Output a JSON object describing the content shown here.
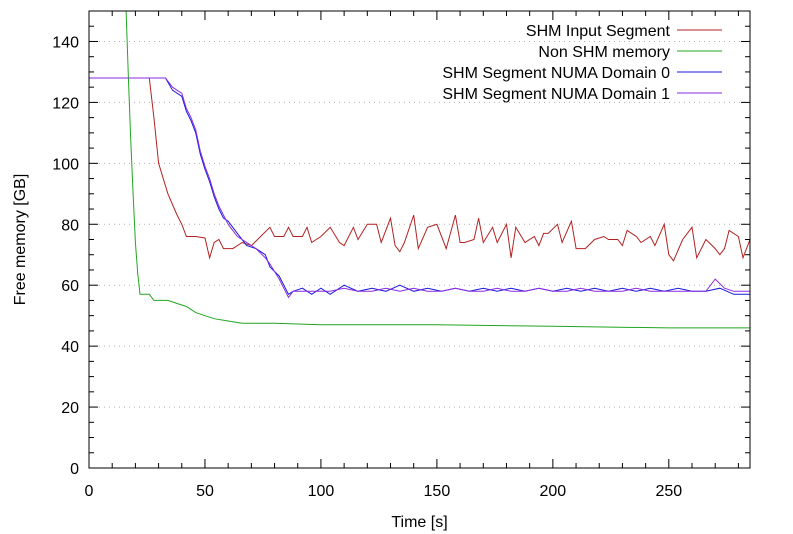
{
  "chart_data": {
    "type": "line",
    "title": "",
    "xlabel": "Time [s]",
    "ylabel": "Free memory [GB]",
    "xlim": [
      0,
      285
    ],
    "ylim": [
      0,
      150
    ],
    "x_ticks": [
      0,
      50,
      100,
      150,
      200,
      250
    ],
    "y_ticks": [
      0,
      20,
      40,
      60,
      80,
      100,
      120,
      140
    ],
    "grid": true,
    "legend_position": "top-right",
    "series": [
      {
        "name": "SHM Input Segment",
        "color": "#b22222",
        "points": [
          [
            0,
            128
          ],
          [
            26,
            128
          ],
          [
            28,
            115
          ],
          [
            30,
            100
          ],
          [
            34,
            90
          ],
          [
            38,
            83
          ],
          [
            40,
            80
          ],
          [
            42,
            76
          ],
          [
            46,
            76
          ],
          [
            50,
            75.5
          ],
          [
            52,
            69
          ],
          [
            54,
            74
          ],
          [
            56,
            75
          ],
          [
            58,
            72
          ],
          [
            62,
            72
          ],
          [
            66,
            74
          ],
          [
            70,
            73
          ],
          [
            74,
            76
          ],
          [
            78,
            79
          ],
          [
            80,
            76
          ],
          [
            84,
            76
          ],
          [
            86,
            79
          ],
          [
            88,
            76
          ],
          [
            92,
            76
          ],
          [
            94,
            79
          ],
          [
            96,
            74
          ],
          [
            100,
            76
          ],
          [
            104,
            79
          ],
          [
            108,
            74
          ],
          [
            110,
            73
          ],
          [
            114,
            79
          ],
          [
            116,
            75
          ],
          [
            120,
            80
          ],
          [
            124,
            80
          ],
          [
            126,
            74
          ],
          [
            130,
            82
          ],
          [
            132,
            73
          ],
          [
            134,
            71
          ],
          [
            136,
            74
          ],
          [
            140,
            83
          ],
          [
            142,
            72
          ],
          [
            146,
            79
          ],
          [
            150,
            80
          ],
          [
            154,
            72
          ],
          [
            158,
            83
          ],
          [
            160,
            74
          ],
          [
            162,
            74
          ],
          [
            166,
            75
          ],
          [
            168,
            82
          ],
          [
            170,
            74
          ],
          [
            174,
            79
          ],
          [
            176,
            74
          ],
          [
            180,
            80
          ],
          [
            182,
            69
          ],
          [
            184,
            79
          ],
          [
            188,
            74
          ],
          [
            192,
            76
          ],
          [
            194,
            73
          ],
          [
            196,
            77
          ],
          [
            198,
            77
          ],
          [
            202,
            80
          ],
          [
            204,
            74
          ],
          [
            208,
            81
          ],
          [
            210,
            72
          ],
          [
            214,
            72
          ],
          [
            218,
            75
          ],
          [
            222,
            76
          ],
          [
            224,
            75
          ],
          [
            228,
            75
          ],
          [
            230,
            73
          ],
          [
            232,
            78
          ],
          [
            236,
            76
          ],
          [
            238,
            74
          ],
          [
            242,
            76
          ],
          [
            244,
            73
          ],
          [
            248,
            80
          ],
          [
            250,
            70
          ],
          [
            252,
            68
          ],
          [
            256,
            75
          ],
          [
            260,
            79
          ],
          [
            262,
            69
          ],
          [
            266,
            75
          ],
          [
            270,
            72
          ],
          [
            272,
            70
          ],
          [
            274,
            72
          ],
          [
            276,
            78
          ],
          [
            280,
            76
          ],
          [
            282,
            69
          ],
          [
            285,
            75
          ]
        ]
      },
      {
        "name": "Non SHM memory",
        "color": "#22a622",
        "points": [
          [
            0,
            160
          ],
          [
            15,
            160
          ],
          [
            16,
            150
          ],
          [
            17,
            128
          ],
          [
            18,
            108
          ],
          [
            19,
            90
          ],
          [
            20,
            74
          ],
          [
            21,
            64
          ],
          [
            22,
            57
          ],
          [
            26,
            57
          ],
          [
            28,
            55
          ],
          [
            34,
            55
          ],
          [
            38,
            54
          ],
          [
            42,
            53
          ],
          [
            46,
            51
          ],
          [
            50,
            50
          ],
          [
            54,
            49
          ],
          [
            58,
            48.5
          ],
          [
            62,
            48
          ],
          [
            66,
            47.5
          ],
          [
            70,
            47.5
          ],
          [
            80,
            47.5
          ],
          [
            100,
            47
          ],
          [
            150,
            47
          ],
          [
            200,
            46.5
          ],
          [
            250,
            46
          ],
          [
            285,
            46
          ]
        ]
      },
      {
        "name": "SHM Segment NUMA Domain 0",
        "color": "#1a1ad9",
        "points": [
          [
            0,
            128
          ],
          [
            33,
            128
          ],
          [
            36,
            124
          ],
          [
            40,
            122
          ],
          [
            42,
            117
          ],
          [
            44,
            114
          ],
          [
            46,
            110
          ],
          [
            48,
            103
          ],
          [
            50,
            98
          ],
          [
            52,
            94
          ],
          [
            54,
            89
          ],
          [
            56,
            85
          ],
          [
            58,
            82
          ],
          [
            60,
            81
          ],
          [
            62,
            79
          ],
          [
            64,
            77
          ],
          [
            68,
            73
          ],
          [
            72,
            72
          ],
          [
            76,
            70
          ],
          [
            78,
            66
          ],
          [
            82,
            63
          ],
          [
            84,
            60
          ],
          [
            86,
            57
          ],
          [
            88,
            58
          ],
          [
            92,
            59
          ],
          [
            96,
            57
          ],
          [
            100,
            59
          ],
          [
            104,
            57
          ],
          [
            110,
            60
          ],
          [
            116,
            58
          ],
          [
            122,
            59
          ],
          [
            128,
            58
          ],
          [
            134,
            60
          ],
          [
            140,
            58
          ],
          [
            146,
            59
          ],
          [
            152,
            58
          ],
          [
            158,
            59
          ],
          [
            164,
            58
          ],
          [
            170,
            59
          ],
          [
            176,
            58
          ],
          [
            182,
            59
          ],
          [
            188,
            58
          ],
          [
            194,
            59
          ],
          [
            200,
            58
          ],
          [
            206,
            59
          ],
          [
            212,
            58
          ],
          [
            218,
            59
          ],
          [
            224,
            58
          ],
          [
            230,
            59
          ],
          [
            236,
            58
          ],
          [
            242,
            59
          ],
          [
            248,
            58
          ],
          [
            254,
            59
          ],
          [
            260,
            58
          ],
          [
            266,
            58
          ],
          [
            272,
            59
          ],
          [
            278,
            57
          ],
          [
            285,
            57
          ]
        ]
      },
      {
        "name": "SHM Segment NUMA Domain 1",
        "color": "#8a2be2",
        "points": [
          [
            0,
            128
          ],
          [
            33,
            128
          ],
          [
            36,
            125
          ],
          [
            40,
            123
          ],
          [
            42,
            118
          ],
          [
            44,
            115
          ],
          [
            46,
            111
          ],
          [
            48,
            104
          ],
          [
            50,
            99
          ],
          [
            52,
            95
          ],
          [
            54,
            90
          ],
          [
            56,
            86
          ],
          [
            58,
            83
          ],
          [
            60,
            80
          ],
          [
            62,
            78
          ],
          [
            64,
            76
          ],
          [
            68,
            74
          ],
          [
            72,
            72
          ],
          [
            76,
            69
          ],
          [
            78,
            67
          ],
          [
            82,
            62
          ],
          [
            84,
            59
          ],
          [
            86,
            56
          ],
          [
            88,
            58
          ],
          [
            92,
            58
          ],
          [
            96,
            58
          ],
          [
            100,
            58
          ],
          [
            104,
            58
          ],
          [
            110,
            59
          ],
          [
            116,
            58
          ],
          [
            122,
            58
          ],
          [
            128,
            59
          ],
          [
            134,
            58
          ],
          [
            140,
            59
          ],
          [
            146,
            58
          ],
          [
            152,
            58
          ],
          [
            158,
            59
          ],
          [
            164,
            58
          ],
          [
            170,
            58
          ],
          [
            176,
            59
          ],
          [
            182,
            58
          ],
          [
            188,
            58
          ],
          [
            194,
            59
          ],
          [
            200,
            58
          ],
          [
            206,
            58
          ],
          [
            212,
            59
          ],
          [
            218,
            58
          ],
          [
            224,
            58
          ],
          [
            230,
            58
          ],
          [
            236,
            59
          ],
          [
            242,
            58
          ],
          [
            248,
            58
          ],
          [
            254,
            58
          ],
          [
            260,
            58
          ],
          [
            266,
            58
          ],
          [
            270,
            62
          ],
          [
            274,
            59
          ],
          [
            278,
            58
          ],
          [
            285,
            58
          ]
        ]
      }
    ]
  }
}
